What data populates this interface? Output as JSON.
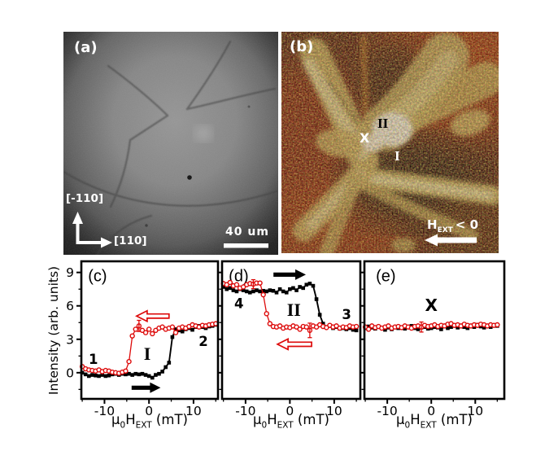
{
  "panels": {
    "a": {
      "label": "(a)",
      "axis_up": "[-110]",
      "axis_right": "[110]",
      "scalebar": "40 um"
    },
    "b": {
      "label": "(b)",
      "region_ii": "II",
      "region_x": "X",
      "region_i": "I",
      "field_h": "H",
      "field_sub": "EXT",
      "field_cmp": "< 0"
    }
  },
  "axis": {
    "y_title": "Intensity (arb. units)",
    "x_mu": "μ",
    "x_sub0": "0",
    "x_h": "H",
    "x_subext": "EXT",
    "x_unit": " (mT)"
  },
  "colors": {
    "red": "#dd0a0a",
    "black": "#000000",
    "white": "#ffffff"
  },
  "field_mT": [
    -15,
    -14.25,
    -13.5,
    -12.75,
    -12,
    -11.25,
    -10.5,
    -9.75,
    -9,
    -8.25,
    -7.5,
    -6.75,
    -6,
    -5.25,
    -4.5,
    -3.75,
    -3,
    -2.25,
    -1.5,
    -0.75,
    0,
    0.75,
    1.5,
    2.25,
    3,
    3.75,
    4.5,
    5.25,
    6,
    6.75,
    7.5,
    8.25,
    9,
    9.75,
    10.5,
    11.25,
    12,
    12.75,
    13.5,
    14.25,
    15
  ],
  "chart_data": [
    {
      "id": "c",
      "type": "line",
      "panel_label": "(c)",
      "xlabel": "μ0 H_EXT (mT)",
      "ylabel": "Intensity (arb. units)",
      "xlim": [
        -15.2,
        15.5
      ],
      "ylim": [
        -2.35,
        10.0
      ],
      "xticks": [
        -10,
        0,
        10
      ],
      "xminor": [
        -15,
        -5,
        5,
        15
      ],
      "yticks": [
        0,
        3,
        6,
        9
      ],
      "yminor": [
        -1.5,
        1.5,
        4.5,
        7.5
      ],
      "show_ytick_labels": true,
      "series": [
        {
          "name": "increasing-field-sweep",
          "marker": "square",
          "color": "#000000",
          "values": [
            0.0,
            -0.15,
            -0.3,
            -0.2,
            -0.25,
            -0.3,
            -0.2,
            -0.3,
            -0.25,
            -0.15,
            -0.1,
            -0.2,
            -0.1,
            -0.15,
            -0.1,
            -0.2,
            -0.1,
            -0.15,
            -0.1,
            -0.2,
            -0.3,
            -0.45,
            -0.2,
            -0.1,
            0.1,
            0.5,
            0.9,
            3.2,
            3.9,
            3.8,
            3.7,
            3.9,
            4.0,
            3.85,
            4.1,
            4.2,
            4.1,
            4.0,
            4.15,
            4.2,
            4.3
          ]
        },
        {
          "name": "decreasing-field-sweep",
          "marker": "circle",
          "color": "#dd0a0a",
          "values": [
            0.55,
            0.35,
            0.25,
            0.2,
            0.15,
            0.25,
            0.1,
            0.2,
            0.15,
            0.05,
            0.0,
            -0.05,
            0.05,
            0.15,
            1.0,
            3.3,
            3.9,
            4.2,
            3.8,
            3.6,
            3.9,
            3.5,
            3.8,
            4.0,
            4.1,
            3.9,
            4.0,
            4.1,
            3.6,
            4.0,
            4.1,
            4.0,
            4.15,
            4.3,
            4.2,
            4.1,
            4.25,
            4.2,
            4.3,
            4.35,
            4.4
          ]
        }
      ],
      "error_bars": [
        {
          "series": 1,
          "x": -2.25,
          "y": 4.2,
          "err": 0.5
        }
      ],
      "annotations": [
        {
          "text": "(c)",
          "x": -13.7,
          "y": 8.2,
          "style": "panel"
        },
        {
          "text": "1",
          "x": -12.5,
          "y": 0.8,
          "style": "bold"
        },
        {
          "text": "I",
          "x": -0.4,
          "y": 1.15,
          "style": "roman"
        },
        {
          "text": "2",
          "x": 12.2,
          "y": 2.4,
          "style": "bold"
        }
      ],
      "arrows": [
        {
          "x_tail": 4.5,
          "x_tip": -2.8,
          "y": 5.08,
          "color": "#dd0a0a",
          "outline": true
        },
        {
          "x_tail": -3.9,
          "x_tip": 2.6,
          "y": -1.35,
          "color": "#000000",
          "outline": false
        }
      ]
    },
    {
      "id": "d",
      "type": "line",
      "panel_label": "(d)",
      "xlabel": "μ0 H_EXT (mT)",
      "xlim": [
        -15.3,
        15.9
      ],
      "ylim": [
        -2.35,
        10.0
      ],
      "xticks": [
        -10,
        0,
        10
      ],
      "xminor": [
        -15,
        -5,
        5,
        15
      ],
      "yticks": [
        0,
        3,
        6,
        9
      ],
      "yminor": [
        -1.5,
        1.5,
        4.5,
        7.5
      ],
      "show_ytick_labels": false,
      "series": [
        {
          "name": "increasing-field-sweep",
          "marker": "square",
          "color": "#000000",
          "values": [
            7.7,
            7.5,
            7.6,
            7.4,
            7.3,
            7.5,
            7.4,
            7.3,
            7.2,
            7.3,
            7.4,
            7.3,
            7.35,
            7.3,
            7.4,
            7.35,
            7.2,
            7.5,
            7.3,
            7.2,
            7.5,
            7.6,
            7.4,
            7.7,
            7.6,
            7.9,
            8.0,
            7.8,
            6.6,
            5.2,
            4.4,
            4.1,
            4.2,
            4.0,
            4.1,
            3.95,
            4.0,
            3.9,
            4.0,
            3.85,
            3.8
          ]
        },
        {
          "name": "decreasing-field-sweep",
          "marker": "circle",
          "color": "#dd0a0a",
          "values": [
            8.0,
            7.9,
            8.1,
            7.8,
            7.9,
            7.6,
            7.7,
            7.9,
            8.0,
            7.95,
            8.05,
            8.05,
            7.0,
            5.3,
            4.4,
            4.15,
            4.1,
            4.2,
            4.0,
            4.1,
            4.05,
            4.2,
            4.1,
            3.9,
            4.15,
            4.1,
            3.8,
            4.2,
            4.1,
            4.3,
            4.15,
            4.05,
            4.25,
            4.1,
            4.2,
            4.0,
            4.1,
            4.05,
            4.2,
            4.1,
            4.15
          ]
        }
      ],
      "error_bars": [
        {
          "series": 1,
          "x": -8.25,
          "y": 7.95,
          "err": 0.4
        },
        {
          "series": 1,
          "x": 4.5,
          "y": 3.8,
          "err": 0.65
        }
      ],
      "annotations": [
        {
          "text": "(d)",
          "x": -13.8,
          "y": 8.2,
          "style": "panel"
        },
        {
          "text": "4",
          "x": -11.5,
          "y": 5.8,
          "style": "bold"
        },
        {
          "text": "II",
          "x": 0.9,
          "y": 5.1,
          "style": "roman"
        },
        {
          "text": "3",
          "x": 12.8,
          "y": 4.8,
          "style": "bold"
        }
      ],
      "arrows": [
        {
          "x_tail": -3.7,
          "x_tip": 3.6,
          "y": 8.8,
          "color": "#000000",
          "outline": false
        },
        {
          "x_tail": 4.9,
          "x_tip": -2.8,
          "y": 2.55,
          "color": "#dd0a0a",
          "outline": true
        }
      ]
    },
    {
      "id": "e",
      "type": "line",
      "panel_label": "(e)",
      "xlabel": "μ0 H_EXT (mT)",
      "xlim": [
        -15.2,
        16.6
      ],
      "ylim": [
        -2.35,
        10.0
      ],
      "xticks": [
        -10,
        0,
        10
      ],
      "xminor": [
        -15,
        -5,
        5,
        15
      ],
      "yticks": [
        0,
        3,
        6,
        9
      ],
      "yminor": [
        -1.5,
        1.5,
        4.5,
        7.5
      ],
      "show_ytick_labels": false,
      "series": [
        {
          "name": "increasing-field-sweep",
          "marker": "square",
          "color": "#000000",
          "values": [
            4.0,
            4.15,
            4.05,
            3.95,
            4.1,
            4.0,
            3.85,
            4.05,
            3.9,
            4.1,
            4.0,
            4.05,
            3.95,
            4.1,
            4.2,
            4.0,
            3.9,
            4.05,
            4.1,
            3.95,
            4.0,
            4.1,
            4.05,
            3.9,
            4.15,
            4.0,
            4.1,
            4.2,
            4.05,
            4.15,
            4.1,
            4.0,
            4.2,
            4.1,
            4.3,
            4.15,
            4.05,
            4.2,
            4.1,
            4.25,
            4.2
          ]
        },
        {
          "name": "decreasing-field-sweep",
          "marker": "circle",
          "color": "#dd0a0a",
          "values": [
            4.1,
            3.9,
            4.2,
            4.05,
            4.15,
            4.0,
            4.1,
            4.2,
            4.0,
            4.1,
            4.15,
            4.05,
            4.2,
            4.1,
            4.0,
            4.15,
            4.2,
            4.1,
            4.25,
            4.15,
            4.2,
            4.3,
            4.15,
            4.25,
            4.2,
            4.35,
            4.4,
            4.25,
            4.3,
            4.2,
            4.35,
            4.25,
            4.2,
            4.3,
            4.25,
            4.35,
            4.3,
            4.2,
            4.3,
            4.25,
            4.3
          ]
        }
      ],
      "error_bars": [
        {
          "series": 1,
          "x": -2.25,
          "y": 4.1,
          "err": 0.45
        }
      ],
      "annotations": [
        {
          "text": "(e)",
          "x": -12.6,
          "y": 8.2,
          "style": "panel"
        },
        {
          "text": "X",
          "x": 0.0,
          "y": 5.55,
          "style": "bold",
          "size": 20
        }
      ],
      "arrows": []
    }
  ]
}
